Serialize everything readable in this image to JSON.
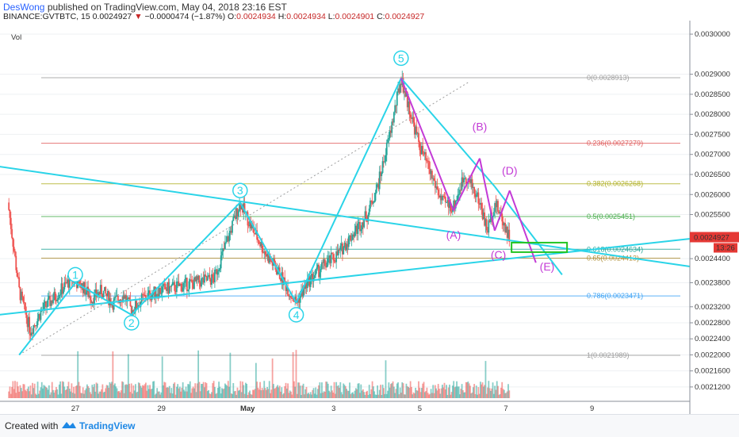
{
  "header": {
    "author": "DesWong",
    "published_text": "published on TradingView.com, May 04, 2018 23:16 EST",
    "symbol": "BINANCE:GVTBTC, 15",
    "last": "0.0024927",
    "arrow": "▼",
    "change": "−0.0000474 (−1.87%)",
    "o_label": "O:",
    "o_value": "0.0024934",
    "h_label": "H:",
    "h_value": "0.0024934",
    "l_label": "L:",
    "l_value": "0.0024901",
    "c_label": "C:",
    "c_value": "0.0024927"
  },
  "footer": {
    "created_with": "Created with",
    "brand": "TradingView"
  },
  "colors": {
    "bull": "#26a69a",
    "bear": "#ef5350",
    "cyan": "#2ad4e8",
    "magenta": "#c33ad6",
    "green_box": "#22c422",
    "price_tag": "#e53935"
  },
  "chart_data": {
    "type": "candlestick",
    "vol_label": "Vol",
    "y_ticks": [
      "0.0030000",
      "0.0029000",
      "0.0028500",
      "0.0028000",
      "0.0027500",
      "0.0027000",
      "0.0026500",
      "0.0026000",
      "0.0025500",
      "0.0024927",
      "0.0024400",
      "0.0023800",
      "0.0023200",
      "0.0022800",
      "0.0022400",
      "0.0022000",
      "0.0021600",
      "0.0021200"
    ],
    "y_tick_values": [
      0.003,
      0.0029,
      0.00285,
      0.0028,
      0.00275,
      0.0027,
      0.00265,
      0.0026,
      0.00255,
      0.0024927,
      0.00244,
      0.00238,
      0.00232,
      0.00228,
      0.00224,
      0.0022,
      0.00216,
      0.00212
    ],
    "ylim": [
      0.0021,
      0.00301
    ],
    "x_ticks": [
      "27",
      "29",
      "May",
      "3",
      "5",
      "7",
      "9"
    ],
    "last_price_label": "0.0024927",
    "countdown": "13:26",
    "price_path": [
      [
        0,
        0.00258
      ],
      [
        0.6,
        0.00236
      ],
      [
        1.2,
        0.00226
      ],
      [
        1.8,
        0.00231
      ],
      [
        2.4,
        0.00234
      ],
      [
        3.0,
        0.00237
      ],
      [
        3.4,
        0.00239
      ],
      [
        4.0,
        0.00237
      ],
      [
        4.5,
        0.00234
      ],
      [
        5.0,
        0.00236
      ],
      [
        5.6,
        0.00233
      ],
      [
        6.2,
        0.00235
      ],
      [
        6.6,
        0.00231
      ],
      [
        7.2,
        0.00234
      ],
      [
        8.0,
        0.00236
      ],
      [
        9.0,
        0.00237
      ],
      [
        10.0,
        0.00238
      ],
      [
        11.0,
        0.00239
      ],
      [
        11.6,
        0.00247
      ],
      [
        12.4,
        0.00258
      ],
      [
        13.0,
        0.00252
      ],
      [
        13.8,
        0.00245
      ],
      [
        14.4,
        0.00241
      ],
      [
        15.0,
        0.00236
      ],
      [
        15.4,
        0.00233
      ],
      [
        16.0,
        0.00238
      ],
      [
        16.8,
        0.00242
      ],
      [
        17.6,
        0.00245
      ],
      [
        18.4,
        0.0025
      ],
      [
        19.2,
        0.00255
      ],
      [
        19.8,
        0.00263
      ],
      [
        20.4,
        0.00275
      ],
      [
        21.0,
        0.00289
      ],
      [
        21.4,
        0.00282
      ],
      [
        22.0,
        0.00272
      ],
      [
        22.6,
        0.00265
      ],
      [
        23.2,
        0.00258
      ],
      [
        23.8,
        0.00257
      ],
      [
        24.4,
        0.00265
      ],
      [
        24.8,
        0.00262
      ],
      [
        25.2,
        0.00258
      ],
      [
        25.6,
        0.00251
      ],
      [
        26.0,
        0.00258
      ],
      [
        26.4,
        0.00254
      ],
      [
        26.8,
        0.00249
      ]
    ],
    "fibonacci": [
      {
        "label": "0(0.0028913)",
        "value": 0.0028913,
        "color": "#a0a0a0"
      },
      {
        "label": "0.236(0.0027279)",
        "value": 0.0027279,
        "color": "#e06060"
      },
      {
        "label": "0.382(0.0026268)",
        "value": 0.0026268,
        "color": "#b3b32d"
      },
      {
        "label": "0.5(0.0025451)",
        "value": 0.0025451,
        "color": "#4caf50"
      },
      {
        "label": "0.618(0.0024634)",
        "value": 0.0024634,
        "color": "#26a69a"
      },
      {
        "label": "0.65(0.0024413)",
        "value": 0.0024413,
        "color": "#b0903a"
      },
      {
        "label": "0.786(0.0023471)",
        "value": 0.0023471,
        "color": "#42a5f5"
      },
      {
        "label": "1(0.0021989)",
        "value": 0.0021989,
        "color": "#9e9e9e"
      }
    ],
    "wave_labels": [
      {
        "text": "1",
        "x": 3.6,
        "y": 0.0024,
        "color": "#2ad4e8"
      },
      {
        "text": "2",
        "x": 6.6,
        "y": 0.00228,
        "color": "#2ad4e8"
      },
      {
        "text": "3",
        "x": 12.4,
        "y": 0.00261,
        "color": "#2ad4e8"
      },
      {
        "text": "4",
        "x": 15.4,
        "y": 0.0023,
        "color": "#2ad4e8"
      },
      {
        "text": "5",
        "x": 21.0,
        "y": 0.00294,
        "color": "#2ad4e8"
      },
      {
        "text": "(A)",
        "x": 23.8,
        "y": 0.0025,
        "color": "#c33ad6"
      },
      {
        "text": "(B)",
        "x": 25.2,
        "y": 0.00277,
        "color": "#c33ad6"
      },
      {
        "text": "(C)",
        "x": 26.2,
        "y": 0.00245,
        "color": "#c33ad6"
      },
      {
        "text": "(D)",
        "x": 26.8,
        "y": 0.00266,
        "color": "#c33ad6"
      },
      {
        "text": "(E)",
        "x": 28.8,
        "y": 0.00242,
        "color": "#c33ad6"
      }
    ]
  }
}
